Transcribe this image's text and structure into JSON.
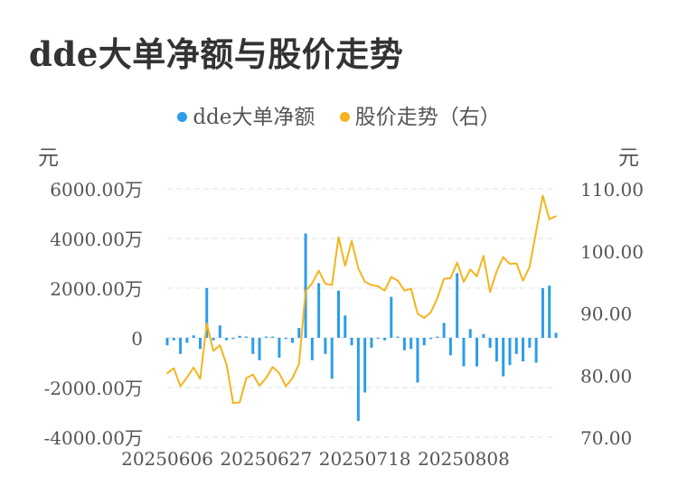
{
  "chart_data": {
    "type": "bar+line",
    "title": "dde大单净额与股价走势",
    "legend": [
      {
        "name": "dde大单净额",
        "color": "#2c9de8"
      },
      {
        "name": "股价走势（右）",
        "color": "#f5b41e"
      }
    ],
    "y_left": {
      "unit": "元",
      "ylim": [
        -4000,
        6000
      ],
      "ticks": [
        6000,
        4000,
        2000,
        0,
        -2000,
        -4000
      ],
      "tick_labels": [
        "6000.00万",
        "4000.00万",
        "2000.00万",
        "0",
        "-2000.00万",
        "-4000.00万"
      ]
    },
    "y_right": {
      "unit": "元",
      "ylim": [
        70,
        110
      ],
      "ticks": [
        110,
        100,
        90,
        80,
        70
      ],
      "tick_labels": [
        "110.00",
        "100.00",
        "90.00",
        "80.00",
        "70.00"
      ]
    },
    "x_tick_labels": [
      "20250606",
      "20250627",
      "20250718",
      "20250808"
    ],
    "x_tick_index": [
      0,
      15,
      30,
      45
    ],
    "grid": true,
    "legend_position": "top-center",
    "series": [
      {
        "name": "dde大单净额",
        "type": "bar",
        "values": [
          -300,
          -100,
          -650,
          -200,
          100,
          -450,
          2000,
          -100,
          500,
          -100,
          -50,
          80,
          50,
          -650,
          -900,
          50,
          50,
          -800,
          -50,
          -200,
          400,
          4200,
          -900,
          2200,
          -650,
          -1650,
          1900,
          900,
          -300,
          -3350,
          -2200,
          -400,
          0,
          -100,
          1650,
          50,
          -500,
          -450,
          -1800,
          -300,
          -50,
          50,
          600,
          -700,
          2600,
          -1150,
          350,
          -1150,
          150,
          -400,
          -950,
          -1550,
          -1100,
          -650,
          -950,
          -400,
          -1000,
          2000,
          2100,
          200
        ]
      },
      {
        "name": "股价走势（右）",
        "type": "line",
        "values": [
          80.3,
          81.1,
          78.2,
          79.6,
          81.2,
          79.4,
          88.3,
          83.9,
          84.8,
          81.7,
          75.5,
          75.6,
          79.5,
          80.1,
          78.3,
          79.5,
          81.3,
          80.3,
          78.2,
          79.5,
          81.8,
          93.5,
          94.8,
          96.8,
          94.7,
          94.5,
          102.2,
          97.6,
          101.6,
          97.2,
          95.0,
          94.5,
          94.3,
          93.6,
          95.8,
          95.2,
          93.6,
          93.9,
          89.9,
          89.2,
          90.1,
          92.4,
          95.5,
          95.6,
          98.1,
          95.0,
          97.0,
          95.9,
          99.2,
          93.4,
          96.7,
          99.0,
          97.9,
          98.0,
          95.2,
          97.4,
          103.2,
          108.9,
          105.1,
          105.6
        ]
      }
    ]
  }
}
